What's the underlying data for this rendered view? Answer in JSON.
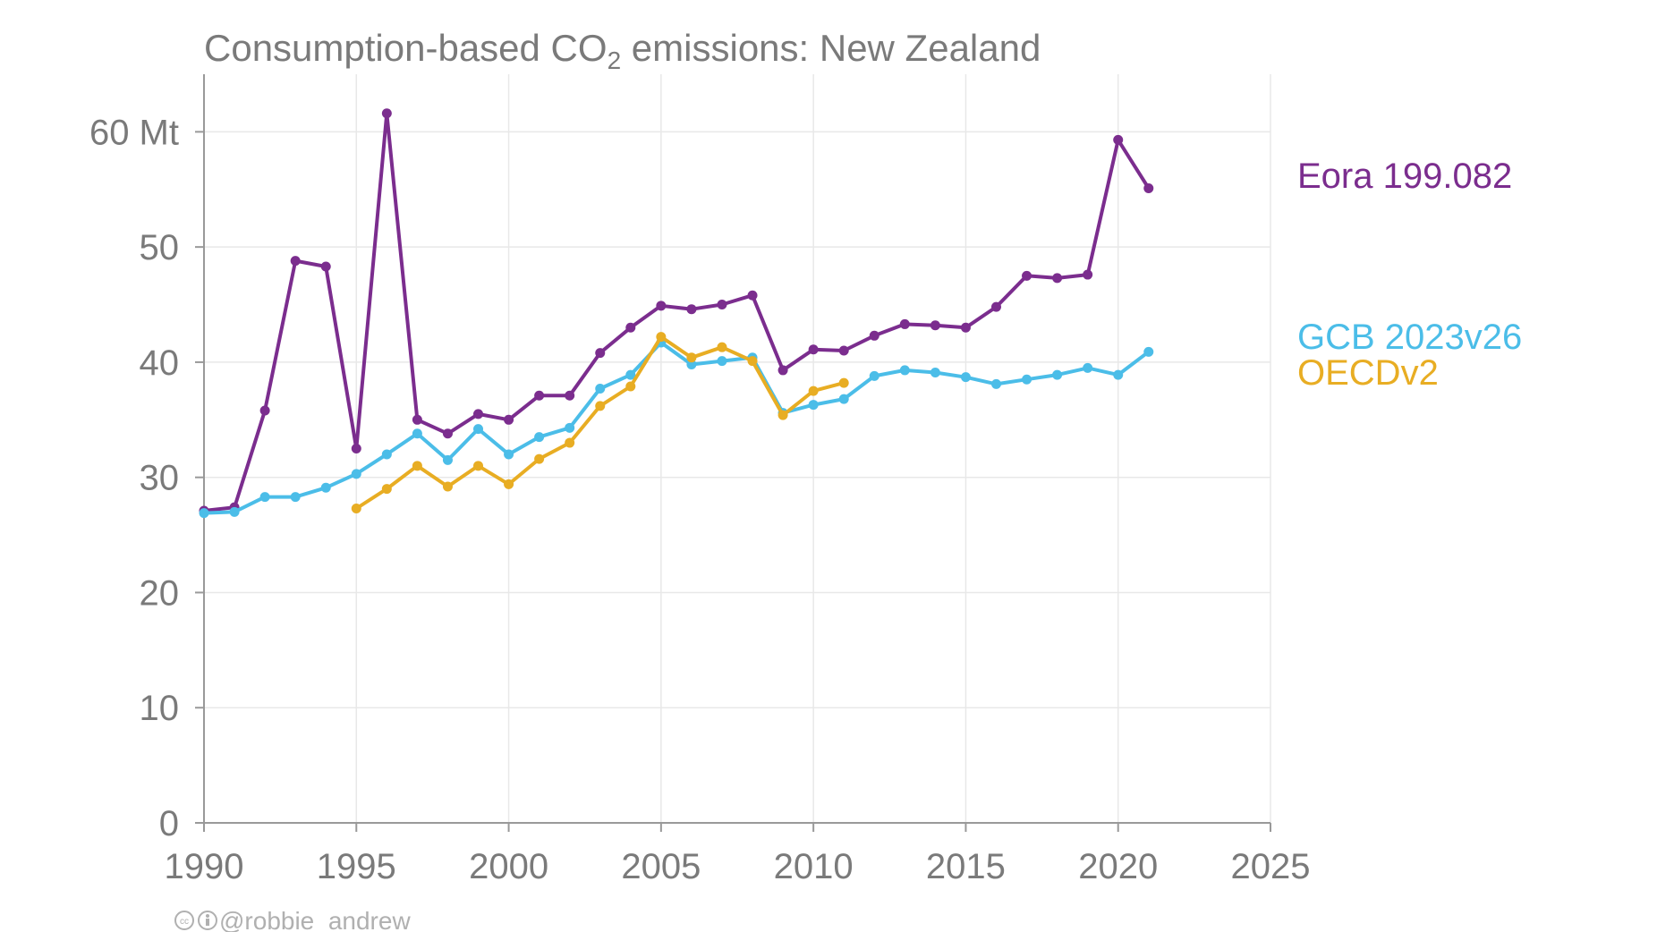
{
  "title": {
    "main": "Consumption-based CO",
    "sub": "2",
    "rest": " emissions: New Zealand"
  },
  "credit": "@robbie_andrew",
  "chart_data": {
    "type": "line",
    "title": "Consumption-based CO2 emissions: New Zealand",
    "xlabel": "",
    "ylabel": "",
    "unit_label": "Mt",
    "xlim": [
      1990,
      2025
    ],
    "ylim": [
      0,
      65
    ],
    "x_ticks": [
      "1990",
      "1995",
      "2000",
      "2005",
      "2010",
      "2015",
      "2020",
      "2025"
    ],
    "y_ticks": [
      "0",
      "10",
      "20",
      "30",
      "40",
      "50",
      "60 Mt"
    ],
    "grid": true,
    "legend_placement": "right, end-labels",
    "series": [
      {
        "name": "Eora 199.082",
        "color": "#7b2d8e",
        "x": [
          1990,
          1991,
          1992,
          1993,
          1994,
          1995,
          1996,
          1997,
          1998,
          1999,
          2000,
          2001,
          2002,
          2003,
          2004,
          2005,
          2006,
          2007,
          2008,
          2009,
          2010,
          2011,
          2012,
          2013,
          2014,
          2015,
          2016,
          2017,
          2018,
          2019,
          2020,
          2021
        ],
        "y": [
          27.1,
          27.4,
          35.8,
          48.8,
          48.3,
          32.5,
          61.6,
          35.0,
          33.8,
          35.5,
          35.0,
          37.1,
          37.1,
          40.8,
          43.0,
          44.9,
          44.6,
          45.0,
          45.8,
          39.3,
          41.1,
          41.0,
          42.3,
          43.3,
          43.2,
          43.0,
          44.8,
          47.5,
          47.3,
          47.6,
          59.3,
          55.1
        ]
      },
      {
        "name": "GCB 2023v26",
        "color": "#4bbde8",
        "x": [
          1990,
          1991,
          1992,
          1993,
          1994,
          1995,
          1996,
          1997,
          1998,
          1999,
          2000,
          2001,
          2002,
          2003,
          2004,
          2005,
          2006,
          2007,
          2008,
          2009,
          2010,
          2011,
          2012,
          2013,
          2014,
          2015,
          2016,
          2017,
          2018,
          2019,
          2020,
          2021
        ],
        "y": [
          26.9,
          27.0,
          28.3,
          28.3,
          29.1,
          30.3,
          32.0,
          33.8,
          31.5,
          34.2,
          32.0,
          33.5,
          34.3,
          37.7,
          38.9,
          41.7,
          39.8,
          40.1,
          40.4,
          35.6,
          36.3,
          36.8,
          38.8,
          39.3,
          39.1,
          38.7,
          38.1,
          38.5,
          38.9,
          39.5,
          38.9,
          40.9
        ]
      },
      {
        "name": "OECDv2",
        "color": "#e8ad23",
        "x": [
          1995,
          1996,
          1997,
          1998,
          1999,
          2000,
          2001,
          2002,
          2003,
          2004,
          2005,
          2006,
          2007,
          2008,
          2009,
          2010,
          2011
        ],
        "y": [
          27.3,
          29.0,
          31.0,
          29.2,
          31.0,
          29.4,
          31.6,
          33.0,
          36.2,
          37.9,
          42.2,
          40.4,
          41.3,
          40.1,
          35.4,
          37.5,
          38.2
        ]
      }
    ]
  }
}
